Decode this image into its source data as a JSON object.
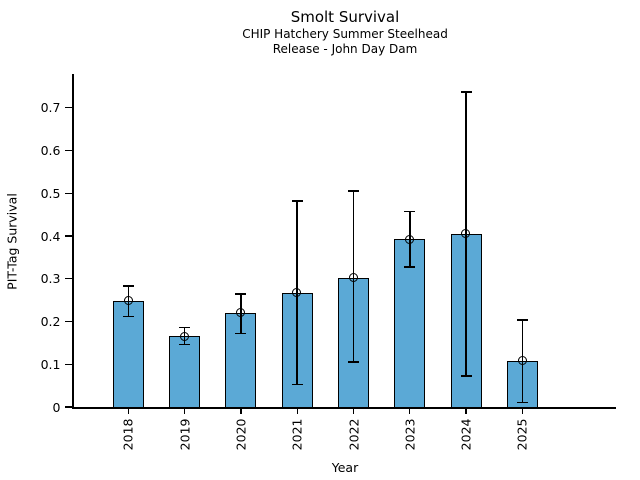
{
  "chart_data": {
    "type": "bar",
    "title": "Smolt Survival",
    "subtitle_line1": "CHIP Hatchery Summer Steelhead",
    "subtitle_line2": "Release - John Day Dam",
    "xlabel": "Year",
    "ylabel": "PIT-Tag Survival",
    "categories": [
      "2018",
      "2019",
      "2020",
      "2021",
      "2022",
      "2023",
      "2024",
      "2025"
    ],
    "values": [
      0.248,
      0.165,
      0.22,
      0.267,
      0.302,
      0.392,
      0.405,
      0.108
    ],
    "error_bars": {
      "low": [
        0.212,
        0.146,
        0.172,
        0.053,
        0.105,
        0.328,
        0.073,
        0.01
      ],
      "high": [
        0.283,
        0.186,
        0.264,
        0.482,
        0.505,
        0.457,
        0.737,
        0.204
      ]
    },
    "ytick_labels": [
      "0",
      "0.1",
      "0.2",
      "0.3",
      "0.4",
      "0.5",
      "0.6",
      "0.7"
    ],
    "ytick_values": [
      0,
      0.1,
      0.2,
      0.3,
      0.4,
      0.5,
      0.6,
      0.7
    ],
    "ylim": [
      0,
      0.779
    ],
    "grid": false,
    "legend": "none",
    "marker": "open-circle",
    "colors": {
      "bar_fill": "#5BA9D6",
      "bar_edge": "#000000",
      "error_bar": "#000000",
      "background": "#ffffff"
    }
  }
}
